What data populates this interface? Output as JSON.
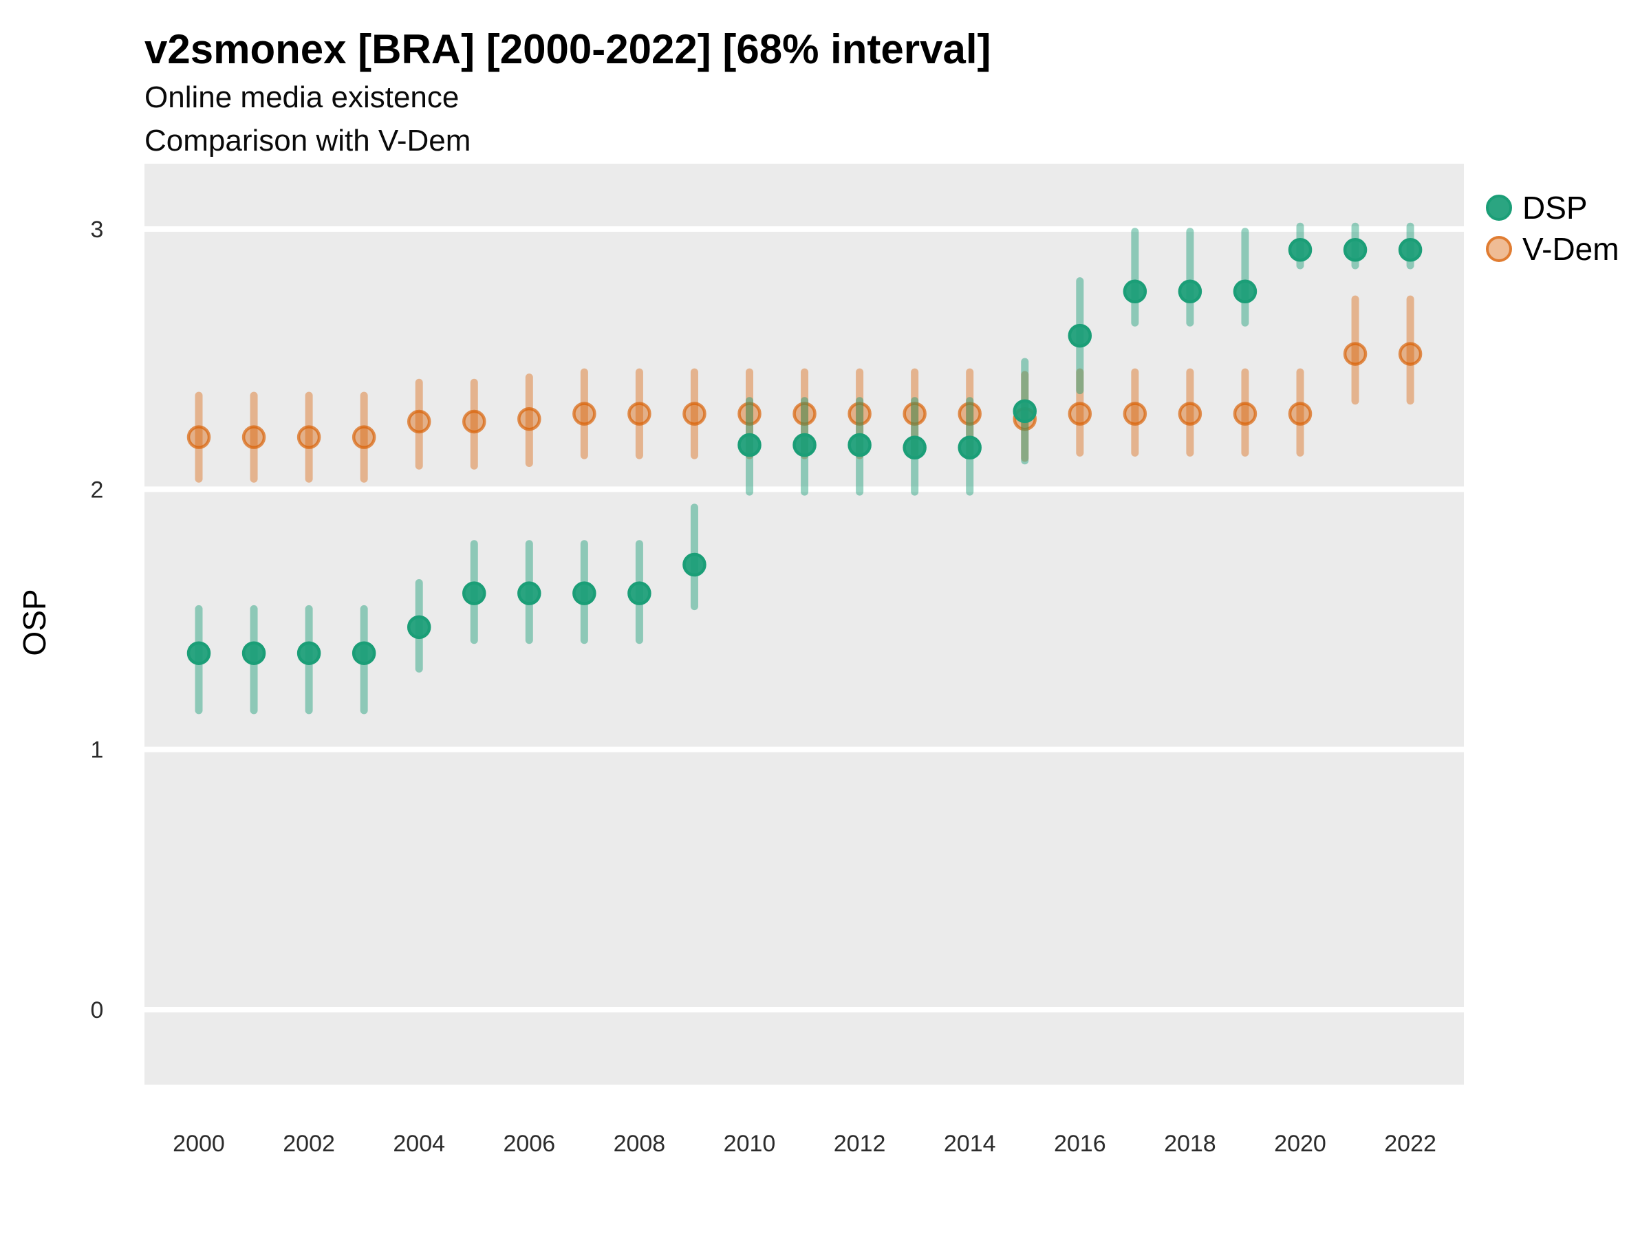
{
  "chart_data": {
    "type": "pointrange",
    "title": "v2smonex [BRA] [2000-2022] [68% interval]",
    "subtitle_lines": [
      "Online media existence",
      "Comparison with V-Dem"
    ],
    "ylabel": "OSP",
    "xlabel": "",
    "interval_note": "68% interval",
    "yticks": [
      0,
      1,
      2,
      3
    ],
    "xticks": [
      2000,
      2002,
      2004,
      2006,
      2008,
      2010,
      2012,
      2014,
      2016,
      2018,
      2020,
      2022
    ],
    "ylim": [
      -0.29,
      3.25
    ],
    "grid": "major-horizontal-only",
    "legend_position": "right",
    "panel_bg": "#EBEBEB",
    "grid_color": "#FFFFFF",
    "years": [
      2000,
      2001,
      2002,
      2003,
      2004,
      2005,
      2006,
      2007,
      2008,
      2009,
      2010,
      2011,
      2012,
      2013,
      2014,
      2015,
      2016,
      2017,
      2018,
      2019,
      2020,
      2021,
      2022
    ],
    "series": [
      {
        "name": "DSP",
        "color": "#1B9E77",
        "values": [
          1.37,
          1.37,
          1.37,
          1.37,
          1.47,
          1.6,
          1.6,
          1.6,
          1.6,
          1.71,
          2.17,
          2.17,
          2.17,
          2.16,
          2.16,
          2.3,
          2.59,
          2.76,
          2.76,
          2.76,
          2.92,
          2.92,
          2.92
        ],
        "lo": [
          1.15,
          1.15,
          1.15,
          1.15,
          1.31,
          1.42,
          1.42,
          1.42,
          1.42,
          1.55,
          1.99,
          1.99,
          1.99,
          1.99,
          1.99,
          2.11,
          2.38,
          2.64,
          2.64,
          2.64,
          2.86,
          2.86,
          2.86
        ],
        "hi": [
          1.54,
          1.54,
          1.54,
          1.54,
          1.64,
          1.79,
          1.79,
          1.79,
          1.79,
          1.93,
          2.34,
          2.34,
          2.34,
          2.34,
          2.34,
          2.49,
          2.8,
          2.99,
          2.99,
          2.99,
          3.01,
          3.01,
          3.01
        ]
      },
      {
        "name": "V-Dem",
        "color": "#D95F02",
        "values": [
          2.2,
          2.2,
          2.2,
          2.2,
          2.26,
          2.26,
          2.27,
          2.29,
          2.29,
          2.29,
          2.29,
          2.29,
          2.29,
          2.29,
          2.29,
          2.27,
          2.29,
          2.29,
          2.29,
          2.29,
          2.29,
          2.52,
          2.52
        ],
        "lo": [
          2.04,
          2.04,
          2.04,
          2.04,
          2.09,
          2.09,
          2.1,
          2.13,
          2.13,
          2.13,
          2.13,
          2.13,
          2.13,
          2.14,
          2.14,
          2.12,
          2.14,
          2.14,
          2.14,
          2.14,
          2.14,
          2.34,
          2.34
        ],
        "hi": [
          2.36,
          2.36,
          2.36,
          2.36,
          2.41,
          2.41,
          2.43,
          2.45,
          2.45,
          2.45,
          2.45,
          2.45,
          2.45,
          2.45,
          2.45,
          2.44,
          2.45,
          2.45,
          2.45,
          2.45,
          2.45,
          2.73,
          2.73
        ]
      }
    ]
  }
}
